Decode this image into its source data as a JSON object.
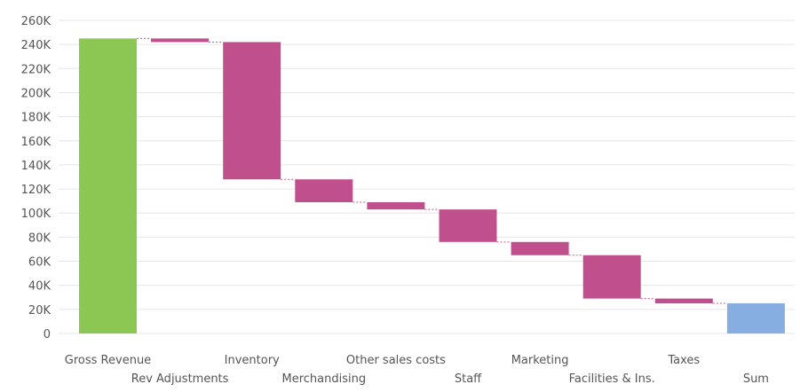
{
  "chart_data": {
    "type": "waterfall",
    "title": "",
    "xlabel": "",
    "ylabel": "",
    "ylim": [
      0,
      260000
    ],
    "yticks": [
      0,
      20000,
      40000,
      60000,
      80000,
      100000,
      120000,
      140000,
      160000,
      180000,
      200000,
      220000,
      240000,
      260000
    ],
    "ytick_labels": [
      "0",
      "20K",
      "40K",
      "60K",
      "80K",
      "100K",
      "120K",
      "140K",
      "160K",
      "180K",
      "200K",
      "220K",
      "240K",
      "260K"
    ],
    "grid": true,
    "categories": [
      "Gross Revenue",
      "Rev Adjustments",
      "Inventory",
      "Merchandising",
      "Other sales costs",
      "Staff",
      "Marketing",
      "Facilities & Ins.",
      "Taxes",
      "Sum"
    ],
    "bars": [
      {
        "kind": "total",
        "start": 0,
        "end": 245000
      },
      {
        "kind": "decrease",
        "start": 245000,
        "end": 242000
      },
      {
        "kind": "decrease",
        "start": 242000,
        "end": 128000
      },
      {
        "kind": "decrease",
        "start": 128000,
        "end": 109000
      },
      {
        "kind": "decrease",
        "start": 109000,
        "end": 103000
      },
      {
        "kind": "decrease",
        "start": 103000,
        "end": 76000
      },
      {
        "kind": "decrease",
        "start": 76000,
        "end": 65000
      },
      {
        "kind": "decrease",
        "start": 65000,
        "end": 29000
      },
      {
        "kind": "decrease",
        "start": 29000,
        "end": 25000
      },
      {
        "kind": "total",
        "start": 0,
        "end": 25000
      }
    ],
    "colors": {
      "first_total": "#8cc653",
      "decrease": "#c0508d",
      "last_total": "#86aee0",
      "connector": "#c05c8a",
      "grid": "#e6e6e6",
      "text": "#555555"
    }
  }
}
